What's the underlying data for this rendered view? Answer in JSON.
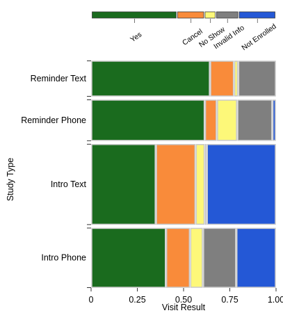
{
  "chart_data": {
    "type": "mosaic",
    "title": "",
    "xlabel": "Visit Result",
    "ylabel": "Study Type",
    "xlim": [
      0,
      1
    ],
    "x_ticks": [
      0,
      0.25,
      0.5,
      0.75,
      1.0
    ],
    "x_tick_labels": [
      "0",
      "0.25",
      "0.50",
      "0.75",
      "1.00"
    ],
    "legend": {
      "position": "top",
      "entries": [
        {
          "label": "Yes",
          "color": "#1a6b1e"
        },
        {
          "label": "Cancel",
          "color": "#f98b3a"
        },
        {
          "label": "No Show",
          "color": "#fdf879"
        },
        {
          "label": "Invalid Info",
          "color": "#7f7f7f"
        },
        {
          "label": "Not Enrolled",
          "color": "#2458d6"
        }
      ]
    },
    "categories": [
      "Reminder Text",
      "Reminder Phone",
      "Intro Text",
      "Intro Phone"
    ],
    "row_share": [
      0.165,
      0.19,
      0.37,
      0.275
    ],
    "series": [
      {
        "name": "Yes",
        "values": [
          0.643,
          0.615,
          0.35,
          0.405
        ]
      },
      {
        "name": "Cancel",
        "values": [
          0.13,
          0.065,
          0.215,
          0.13
        ]
      },
      {
        "name": "No Show",
        "values": [
          0.022,
          0.11,
          0.05,
          0.07
        ]
      },
      {
        "name": "Invalid Info",
        "values": [
          0.205,
          0.19,
          0.01,
          0.18
        ]
      },
      {
        "name": "Not Enrolled",
        "values": [
          0.0,
          0.02,
          0.375,
          0.215
        ]
      }
    ]
  }
}
